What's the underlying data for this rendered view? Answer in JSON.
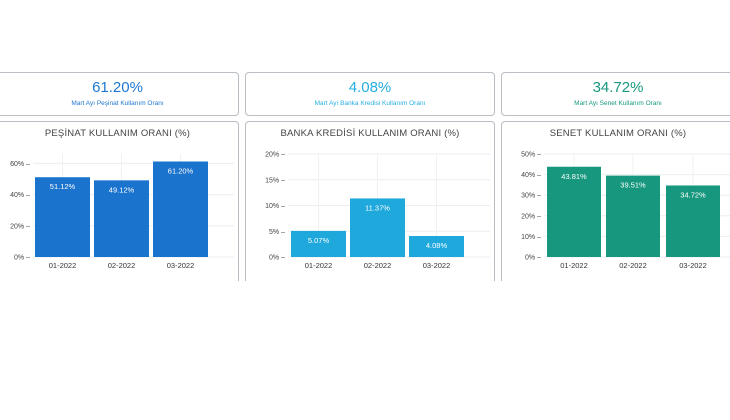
{
  "kpis": [
    {
      "value": "61.20%",
      "label": "Mart Ayı Peşinat Kullanım Oranı",
      "color": "#1f77d0"
    },
    {
      "value": "4.08%",
      "label": "Mart Ayı Banka Kredisi Kullanım Oranı",
      "color": "#25aee0"
    },
    {
      "value": "34.72%",
      "label": "Mart Ayı Senet Kullanım Oranı",
      "color": "#17987e"
    }
  ],
  "chart_data": [
    {
      "type": "bar",
      "title": "PEŞİNAT KULLANIM ORANI (%)",
      "categories": [
        "01-2022",
        "02-2022",
        "03-2022"
      ],
      "values": [
        51.12,
        49.12,
        61.2
      ],
      "data_labels": [
        "51.12%",
        "49.12%",
        "61.20%"
      ],
      "yticks": [
        0,
        20,
        40,
        60
      ],
      "ytick_labels": [
        "0% –",
        "20% –",
        "40% –",
        "60% –"
      ],
      "ylim": [
        0,
        66
      ],
      "color": "#1a73cc"
    },
    {
      "type": "bar",
      "title": "BANKA KREDİSİ KULLANIM ORANI (%)",
      "categories": [
        "01-2022",
        "02-2022",
        "03-2022"
      ],
      "values": [
        5.07,
        11.37,
        4.08
      ],
      "data_labels": [
        "5.07%",
        "11.37%",
        "4.08%"
      ],
      "yticks": [
        0,
        5,
        10,
        15,
        20
      ],
      "ytick_labels": [
        "0% –",
        "5% –",
        "10% –",
        "15% –",
        "20% –"
      ],
      "ylim": [
        0,
        20
      ],
      "color": "#1ea8dc"
    },
    {
      "type": "bar",
      "title": "SENET KULLANIM ORANI (%)",
      "categories": [
        "01-2022",
        "02-2022",
        "03-2022"
      ],
      "values": [
        43.81,
        39.51,
        34.72
      ],
      "data_labels": [
        "43.81%",
        "39.51%",
        "34.72%"
      ],
      "yticks": [
        0,
        10,
        20,
        30,
        40,
        50
      ],
      "ytick_labels": [
        "0% –",
        "10% –",
        "20% –",
        "30% –",
        "40% –",
        "50% –"
      ],
      "ylim": [
        0,
        50
      ],
      "color": "#17987e"
    }
  ]
}
